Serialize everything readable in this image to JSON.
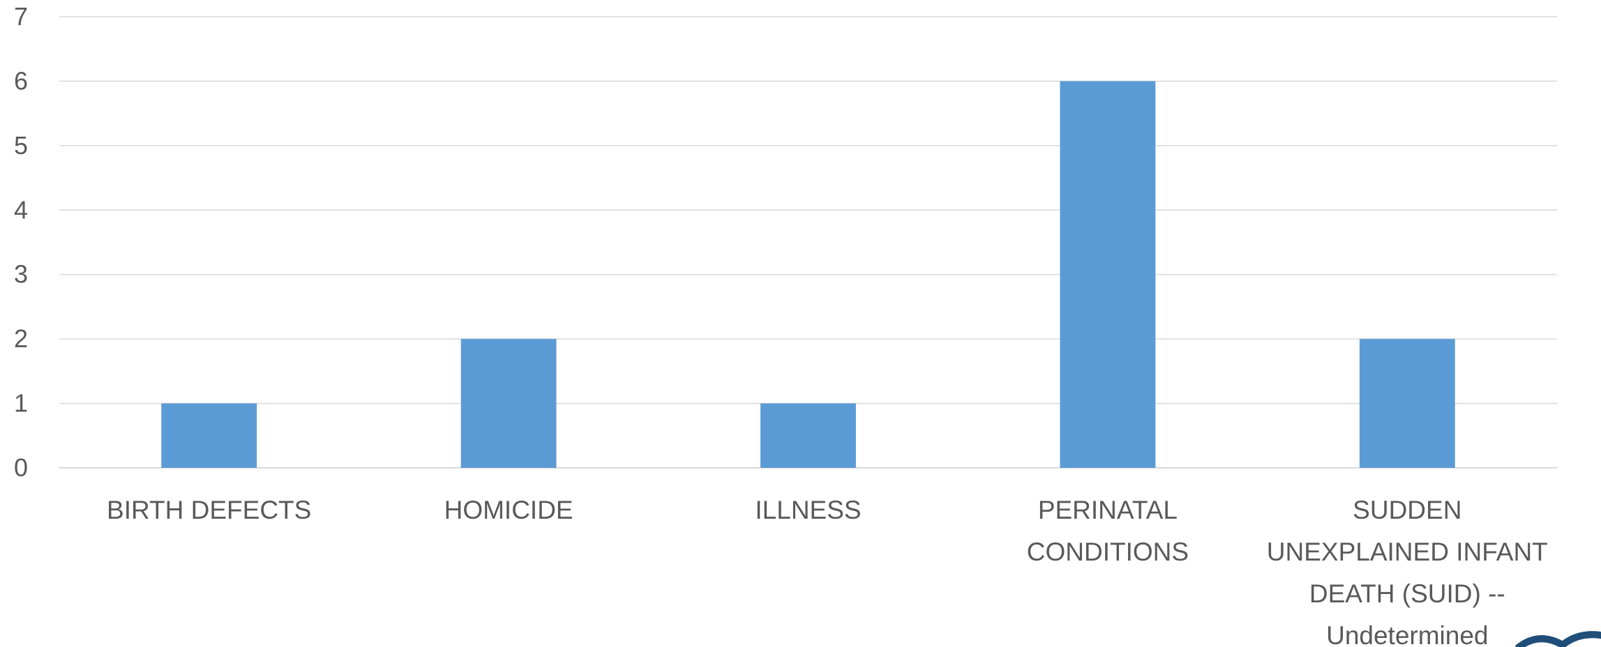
{
  "chart_data": {
    "type": "bar",
    "categories": [
      [
        "BIRTH DEFECTS"
      ],
      [
        "HOMICIDE"
      ],
      [
        "ILLNESS"
      ],
      [
        "PERINATAL",
        "CONDITIONS"
      ],
      [
        "SUDDEN",
        "UNEXPLAINED INFANT",
        "DEATH (SUID) --",
        "Undetermined"
      ]
    ],
    "values": [
      1,
      2,
      1,
      6,
      2
    ],
    "ylim": [
      0,
      7
    ],
    "yticks": [
      0,
      1,
      2,
      3,
      4,
      5,
      6,
      7
    ],
    "grid": true,
    "legend": "none",
    "title": "",
    "xlabel": "",
    "ylabel": "",
    "colors": {
      "bar": "#5b9bd5",
      "grid": "#d9d9d9",
      "text": "#595959"
    }
  }
}
